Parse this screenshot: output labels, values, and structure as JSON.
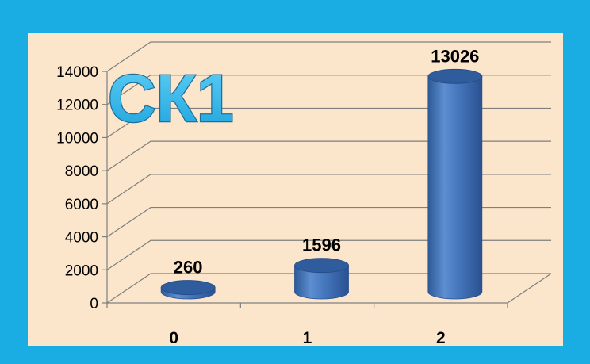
{
  "colors": {
    "border": "#1AADE3",
    "plot_background": "#FBE6CC",
    "bar_front": "#3E6FB4",
    "bar_top": "#2F5C9C",
    "title_fill": "#27B4EA",
    "title_stroke": "#1F6F9A",
    "grid": "#7F7F7F"
  },
  "chart_data": {
    "type": "bar",
    "style": "3d-cylinder",
    "title": "СК1",
    "categories": [
      "0",
      "1",
      "2"
    ],
    "values": [
      260,
      1596,
      13026
    ],
    "data_labels": [
      "260",
      "1596",
      "13026"
    ],
    "ylim": [
      0,
      14000
    ],
    "yticks": [
      0,
      2000,
      4000,
      6000,
      8000,
      10000,
      12000,
      14000
    ],
    "ytick_labels": [
      "0",
      "2000",
      "4000",
      "6000",
      "8000",
      "10000",
      "12000",
      "14000"
    ],
    "xlabel": "",
    "ylabel": "",
    "grid": true,
    "legend": false
  }
}
